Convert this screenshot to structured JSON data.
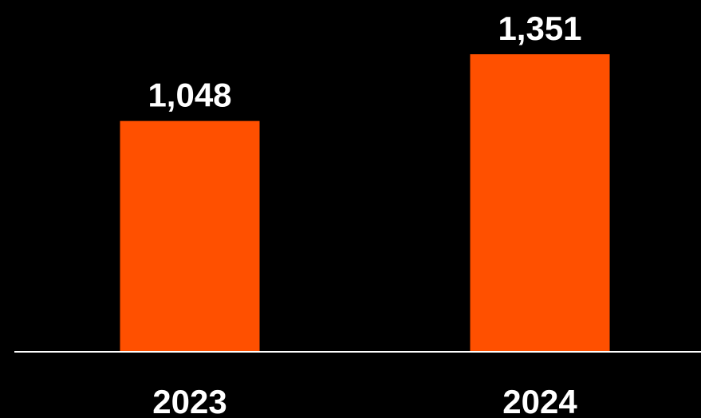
{
  "chart_data": {
    "type": "bar",
    "title": "",
    "xlabel": "",
    "ylabel": "",
    "categories": [
      "2023",
      "2024"
    ],
    "values": [
      1048,
      1351
    ],
    "value_labels": [
      "1,048",
      "1,351"
    ],
    "ylim": [
      0,
      1351
    ],
    "grid": false,
    "legend": "none",
    "colors": {
      "bar": "#FF5000",
      "background": "#000000",
      "text": "#FFFFFF",
      "baseline": "#FFFFFF"
    }
  }
}
